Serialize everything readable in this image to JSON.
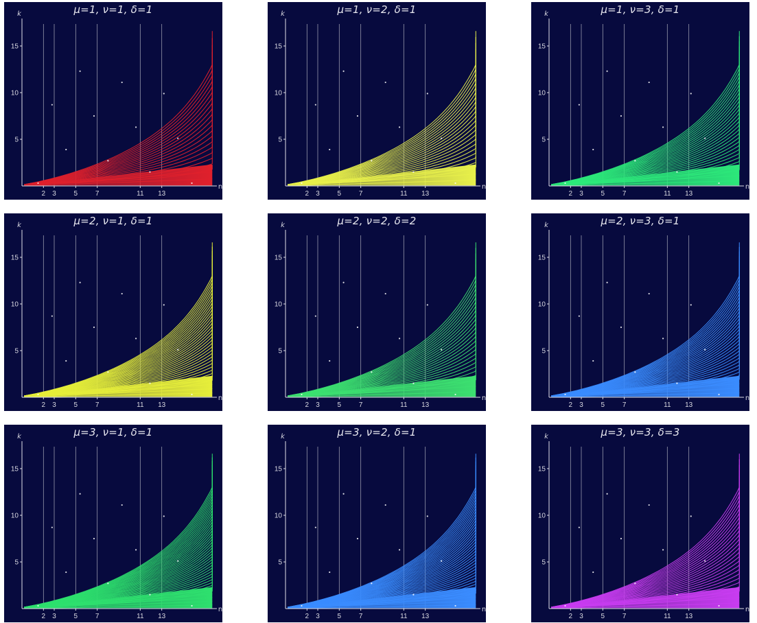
{
  "figure": {
    "axis_labels": {
      "y": "k",
      "x": "n"
    },
    "x_tick_labels": [
      "2",
      "3",
      "5",
      "7",
      "11",
      "13"
    ],
    "y_tick_labels": [
      "5",
      "10",
      "15"
    ]
  },
  "chart_data": [
    {
      "type": "line",
      "title": "μ=1,  ν=1,  δ=1",
      "color": "#e0202c",
      "xlabel": "n",
      "ylabel": "k",
      "xlim": [
        0,
        18
      ],
      "ylim": [
        0,
        17.5
      ],
      "xticks": [
        2,
        3,
        5,
        7,
        11,
        13
      ],
      "yticks": [
        5,
        10,
        15
      ],
      "vertical_lines_at": [
        2,
        3,
        5,
        7,
        11,
        13
      ],
      "curve_count": 22
    },
    {
      "type": "line",
      "title": "μ=1,  ν=2,  δ=1",
      "color": "#e8f04a",
      "xlabel": "n",
      "ylabel": "k",
      "xlim": [
        0,
        18
      ],
      "ylim": [
        0,
        17.5
      ],
      "xticks": [
        2,
        3,
        5,
        7,
        11,
        13
      ],
      "yticks": [
        5,
        10,
        15
      ],
      "vertical_lines_at": [
        2,
        3,
        5,
        7,
        11,
        13
      ],
      "curve_count": 26
    },
    {
      "type": "line",
      "title": "μ=1,  ν=3,  δ=1",
      "color": "#2ce87a",
      "xlabel": "n",
      "ylabel": "k",
      "xlim": [
        0,
        18
      ],
      "ylim": [
        0,
        17.5
      ],
      "xticks": [
        2,
        3,
        5,
        7,
        11,
        13
      ],
      "yticks": [
        5,
        10,
        15
      ],
      "vertical_lines_at": [
        2,
        3,
        5,
        7,
        11,
        13
      ],
      "curve_count": 30
    },
    {
      "type": "line",
      "title": "μ=2,  ν=1,  δ=1",
      "color": "#e6ee3a",
      "xlabel": "n",
      "ylabel": "k",
      "xlim": [
        0,
        18
      ],
      "ylim": [
        0,
        17.5
      ],
      "xticks": [
        2,
        3,
        5,
        7,
        11,
        13
      ],
      "yticks": [
        5,
        10,
        15
      ],
      "vertical_lines_at": [
        2,
        3,
        5,
        7,
        11,
        13
      ],
      "curve_count": 36
    },
    {
      "type": "line",
      "title": "μ=2,  ν=2,  δ=2",
      "color": "#3ce070",
      "xlabel": "n",
      "ylabel": "k",
      "xlim": [
        0,
        18
      ],
      "ylim": [
        0,
        17.5
      ],
      "xticks": [
        2,
        3,
        5,
        7,
        11,
        13
      ],
      "yticks": [
        5,
        10,
        15
      ],
      "vertical_lines_at": [
        2,
        3,
        5,
        7,
        11,
        13
      ],
      "curve_count": 28
    },
    {
      "type": "line",
      "title": "μ=2,  ν=3,  δ=1",
      "color": "#3a8cff",
      "xlabel": "n",
      "ylabel": "k",
      "xlim": [
        0,
        18
      ],
      "ylim": [
        0,
        17.5
      ],
      "xticks": [
        2,
        3,
        5,
        7,
        11,
        13
      ],
      "yticks": [
        5,
        10,
        15
      ],
      "vertical_lines_at": [
        2,
        3,
        5,
        7,
        11,
        13
      ],
      "curve_count": 34
    },
    {
      "type": "line",
      "title": "μ=3,  ν=1,  δ=1",
      "color": "#2ee06e",
      "xlabel": "n",
      "ylabel": "k",
      "xlim": [
        0,
        18
      ],
      "ylim": [
        0,
        17.5
      ],
      "xticks": [
        2,
        3,
        5,
        7,
        11,
        13
      ],
      "yticks": [
        5,
        10,
        15
      ],
      "vertical_lines_at": [
        2,
        3,
        5,
        7,
        11,
        13
      ],
      "curve_count": 42
    },
    {
      "type": "line",
      "title": "μ=3,  ν=2,  δ=1",
      "color": "#3a8cff",
      "xlabel": "n",
      "ylabel": "k",
      "xlim": [
        0,
        18
      ],
      "ylim": [
        0,
        17.5
      ],
      "xticks": [
        2,
        3,
        5,
        7,
        11,
        13
      ],
      "yticks": [
        5,
        10,
        15
      ],
      "vertical_lines_at": [
        2,
        3,
        5,
        7,
        11,
        13
      ],
      "curve_count": 40
    },
    {
      "type": "line",
      "title": "μ=3,  ν=3,  δ=3",
      "color": "#c83cf0",
      "xlabel": "n",
      "ylabel": "k",
      "xlim": [
        0,
        18
      ],
      "ylim": [
        0,
        17.5
      ],
      "xticks": [
        2,
        3,
        5,
        7,
        11,
        13
      ],
      "yticks": [
        5,
        10,
        15
      ],
      "vertical_lines_at": [
        2,
        3,
        5,
        7,
        11,
        13
      ],
      "curve_count": 28
    }
  ]
}
